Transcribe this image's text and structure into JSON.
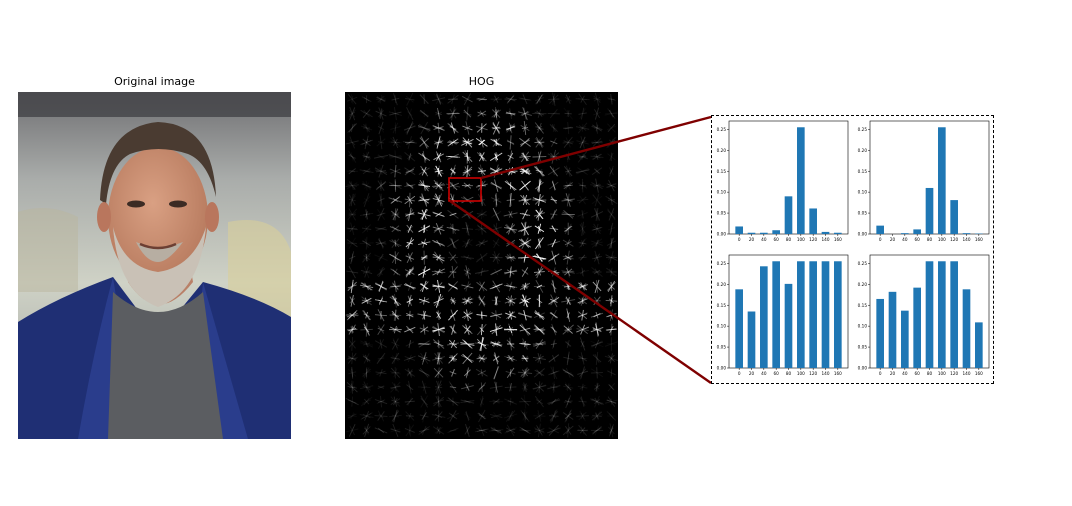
{
  "titles": {
    "original": "Original image",
    "hog": "HOG"
  },
  "photo": {
    "subject": "portrait-photo",
    "colors": {
      "background_top": "#8c8c8c",
      "jacket": "#1f2f74",
      "shirt": "#5b5d61",
      "skin": "#c98c6e",
      "hair": "#4a3b31",
      "beard": "#c9c1b6"
    }
  },
  "hog": {
    "background": "#000000",
    "stroke_color": "#ffffff"
  },
  "highlight": {
    "box_color": "#cc0000",
    "connector_color": "#7f0000"
  },
  "chart_data": [
    {
      "type": "bar",
      "x": [
        0,
        20,
        40,
        60,
        80,
        100,
        120,
        140,
        160
      ],
      "values": [
        0.018,
        0.003,
        0.003,
        0.009,
        0.09,
        0.255,
        0.061,
        0.005,
        0.003
      ],
      "xticks": [
        "0",
        "20",
        "40",
        "60",
        "80",
        "100",
        "120",
        "140",
        "160"
      ],
      "ylim": [
        0,
        0.27
      ],
      "yticks": [
        "0.00",
        "0.05",
        "0.10",
        "0.15",
        "0.20",
        "0.25"
      ],
      "color": "#1f77b4"
    },
    {
      "type": "bar",
      "x": [
        0,
        20,
        40,
        60,
        80,
        100,
        120,
        140,
        160
      ],
      "values": [
        0.02,
        0.0,
        0.002,
        0.011,
        0.11,
        0.255,
        0.081,
        0.002,
        0.001
      ],
      "xticks": [
        "0",
        "20",
        "40",
        "60",
        "80",
        "100",
        "120",
        "140",
        "160"
      ],
      "ylim": [
        0,
        0.27
      ],
      "yticks": [
        "0.00",
        "0.05",
        "0.10",
        "0.15",
        "0.20",
        "0.25"
      ],
      "color": "#1f77b4"
    },
    {
      "type": "bar",
      "x": [
        0,
        20,
        40,
        60,
        80,
        100,
        120,
        140,
        160
      ],
      "values": [
        0.188,
        0.135,
        0.243,
        0.255,
        0.201,
        0.255,
        0.255,
        0.255,
        0.255
      ],
      "xticks": [
        "0",
        "20",
        "40",
        "60",
        "80",
        "100",
        "120",
        "140",
        "160"
      ],
      "ylim": [
        0,
        0.27
      ],
      "yticks": [
        "0.00",
        "0.05",
        "0.10",
        "0.15",
        "0.20",
        "0.25"
      ],
      "color": "#1f77b4"
    },
    {
      "type": "bar",
      "x": [
        0,
        20,
        40,
        60,
        80,
        100,
        120,
        140,
        160
      ],
      "values": [
        0.165,
        0.182,
        0.137,
        0.192,
        0.255,
        0.255,
        0.255,
        0.188,
        0.109
      ],
      "xticks": [
        "0",
        "20",
        "40",
        "60",
        "80",
        "100",
        "120",
        "140",
        "160"
      ],
      "ylim": [
        0,
        0.27
      ],
      "yticks": [
        "0.00",
        "0.05",
        "0.10",
        "0.15",
        "0.20",
        "0.25"
      ],
      "color": "#1f77b4"
    }
  ]
}
